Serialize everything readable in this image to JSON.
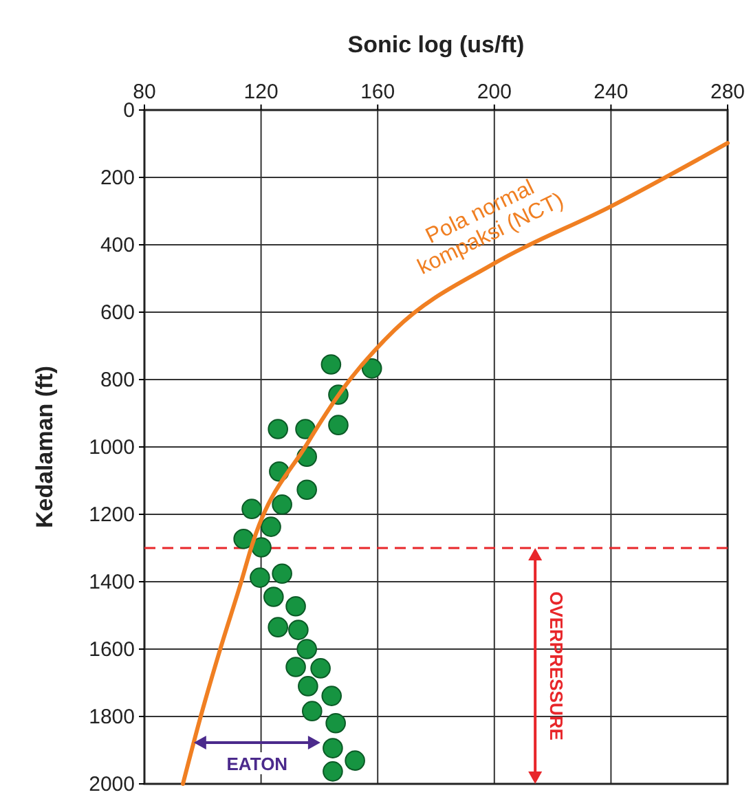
{
  "chart_data": {
    "type": "scatter",
    "xlabel": "Sonic log (us/ft)",
    "ylabel": "Kedalaman (ft)",
    "xlim": [
      80,
      280
    ],
    "xticks": [
      80,
      120,
      160,
      200,
      240,
      280
    ],
    "ylim": [
      2000,
      0
    ],
    "yticks": [
      0,
      200,
      400,
      600,
      800,
      1000,
      1200,
      1400,
      1600,
      1800,
      2000
    ],
    "grid": true,
    "legend": false,
    "marker": "circle",
    "series": [
      {
        "color": "#169441",
        "x": [
          144,
          158,
          146.5,
          146.5,
          125.8,
          135.2,
          135.7,
          126.2,
          135.7,
          116.8,
          127.2,
          123.4,
          114,
          120.1,
          119.6,
          127.2,
          124.3,
          131.9,
          125.8,
          132.8,
          135.7,
          131.9,
          140.4,
          136.1,
          144.2,
          137.5,
          145.6,
          144.6,
          152.2,
          144.6
        ],
        "values": [
          755,
          767,
          845,
          935,
          947,
          947,
          1029,
          1073,
          1127,
          1184,
          1171,
          1237,
          1273,
          1298,
          1388,
          1376,
          1445,
          1473,
          1535,
          1543,
          1600,
          1653,
          1657,
          1710,
          1739,
          1784,
          1820,
          1894,
          1931,
          1963
        ]
      },
      {
        "type": "line",
        "name": "Pola normal kompaksi (NCT)",
        "color": "#f07f22",
        "line_style": "solid",
        "marker": "none",
        "x": [
          93.2,
          99.3,
          106,
          113.2,
          116.8,
          135.7,
          148.4,
          165.8,
          200,
          240,
          280
        ],
        "values": [
          2000,
          1800,
          1600,
          1400,
          1294,
          992,
          824,
          653,
          455,
          286,
          98
        ]
      }
    ],
    "ref_lines": [
      {
        "axis": "y",
        "value": 1300,
        "color": "#e8262a",
        "line_style": "dashed"
      }
    ],
    "annotations": [
      "OVERPRESSURE",
      "EATON"
    ]
  }
}
